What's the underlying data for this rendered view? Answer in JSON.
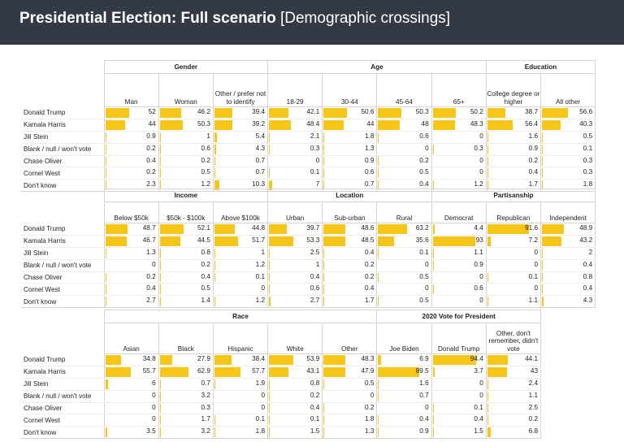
{
  "header": {
    "title_bold": "Presidential Election: Full scenario",
    "title_rest": " [Demographic crossings]"
  },
  "colors": {
    "bar": "#f5c518",
    "header_bg": "#343a45"
  },
  "row_labels": [
    "Donald Trump",
    "Kamala Harris",
    "Jill Stein",
    "Blank / null / won't vote",
    "Chase Oliver",
    "Cornel West",
    "Don't know"
  ],
  "chart_data": [
    {
      "type": "table",
      "groups": [
        {
          "name": "Gender",
          "columns": [
            {
              "label": "Man",
              "values": [
                52,
                44,
                0.9,
                0.2,
                0.4,
                0.2,
                2.3
              ]
            },
            {
              "label": "Woman",
              "values": [
                46.2,
                50.3,
                1,
                0.6,
                0.2,
                0.5,
                1.2
              ]
            },
            {
              "label": "Other / prefer not to identify",
              "values": [
                39.4,
                39.2,
                5.4,
                4.3,
                0.7,
                0.7,
                10.3
              ]
            }
          ]
        },
        {
          "name": "Age",
          "columns": [
            {
              "label": "18-29",
              "values": [
                42.1,
                48.4,
                2.1,
                0.3,
                0,
                0.1,
                7
              ]
            },
            {
              "label": "30-44",
              "values": [
                50.6,
                44,
                1.8,
                1.3,
                0.9,
                0.6,
                0.7
              ]
            },
            {
              "label": "45-64",
              "values": [
                50.3,
                48,
                0.6,
                0,
                0.2,
                0.5,
                0.4
              ]
            },
            {
              "label": "65+",
              "values": [
                50.2,
                48.3,
                0,
                0.3,
                0,
                0,
                1.2
              ]
            }
          ]
        },
        {
          "name": "Education",
          "columns": [
            {
              "label": "College degree or higher",
              "values": [
                38.7,
                56.4,
                1.6,
                0.9,
                0.2,
                0.4,
                1.7
              ]
            },
            {
              "label": "All other",
              "values": [
                56.6,
                40.3,
                0.5,
                0.1,
                0.3,
                0.3,
                1.8
              ]
            }
          ]
        }
      ]
    },
    {
      "type": "table",
      "groups": [
        {
          "name": "Income",
          "columns": [
            {
              "label": "Below $50k",
              "values": [
                48.7,
                46.7,
                1.3,
                0,
                0.2,
                0.4,
                2.7
              ]
            },
            {
              "label": "$50k - $100k",
              "values": [
                52.1,
                44.5,
                0.8,
                0.2,
                0.4,
                0.5,
                1.4
              ]
            },
            {
              "label": "Above $100k",
              "values": [
                44.8,
                51.7,
                1,
                1.2,
                0.1,
                0,
                1.2
              ]
            }
          ]
        },
        {
          "name": "Location",
          "columns": [
            {
              "label": "Urban",
              "values": [
                39.7,
                53.3,
                2.5,
                1,
                0.4,
                0.6,
                2.7
              ]
            },
            {
              "label": "Sub-urban",
              "values": [
                48.6,
                48.5,
                0.4,
                0.2,
                0.2,
                0.4,
                1.7
              ]
            },
            {
              "label": "Rural",
              "values": [
                63.2,
                35.6,
                0.1,
                0,
                0.5,
                0,
                0.5
              ]
            }
          ]
        },
        {
          "name": "Partisanship",
          "columns": [
            {
              "label": "Democrat",
              "values": [
                4.4,
                93,
                1.1,
                0.9,
                0,
                0.6,
                0
              ]
            },
            {
              "label": "Republican",
              "values": [
                91.6,
                7.2,
                0,
                0,
                0.1,
                0,
                1.1
              ]
            },
            {
              "label": "Independent",
              "values": [
                48.9,
                43.2,
                2,
                0.4,
                0.8,
                0.4,
                4.3
              ]
            }
          ]
        }
      ]
    },
    {
      "type": "table",
      "groups": [
        {
          "name": "Race",
          "columns": [
            {
              "label": "Asian",
              "values": [
                34.8,
                55.7,
                6,
                0,
                0,
                0,
                3.5
              ]
            },
            {
              "label": "Black",
              "values": [
                27.9,
                62.9,
                0.7,
                3.2,
                0.3,
                1.7,
                3.2
              ]
            },
            {
              "label": "Hispanic",
              "values": [
                38.4,
                57.7,
                1.9,
                0,
                0,
                0.1,
                1.8
              ]
            },
            {
              "label": "White",
              "values": [
                53.9,
                43.1,
                0.8,
                0.2,
                0.4,
                0.1,
                1.5
              ]
            },
            {
              "label": "Other",
              "values": [
                48.3,
                47.9,
                0.5,
                0,
                0.2,
                1.8,
                1.3
              ]
            }
          ]
        },
        {
          "name": "2020 Vote for President",
          "columns": [
            {
              "label": "Joe Biden",
              "values": [
                6.9,
                89.5,
                1.6,
                0.7,
                0,
                0.4,
                0.9
              ]
            },
            {
              "label": "Donald Trump",
              "values": [
                94.4,
                3.7,
                0,
                0,
                0.1,
                0.4,
                1.5
              ]
            },
            {
              "label": "Other, don't remember, didn't vote",
              "values": [
                44.1,
                43,
                2.4,
                1.1,
                2.5,
                0.2,
                6.8
              ]
            }
          ]
        }
      ]
    }
  ]
}
